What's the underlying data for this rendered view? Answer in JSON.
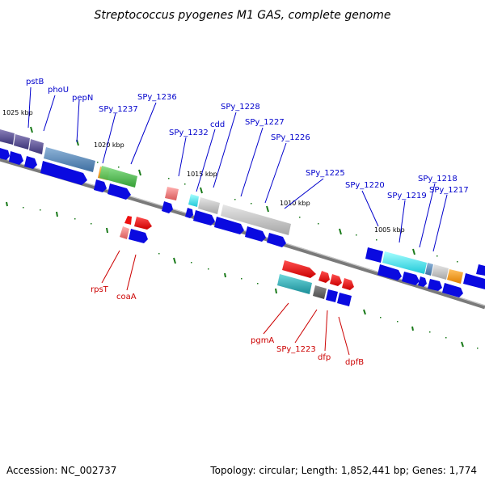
{
  "title": "Streptococcus pyogenes M1 GAS, complete genome",
  "footer": {
    "accession": "Accession: NC_002737",
    "topology": "Topology: circular; Length: 1,852,441 bp; Genes: 1,774"
  },
  "scale_labels": [
    "1025 kbp",
    "1020 kbp",
    "1015 kbp",
    "1010 kbp",
    "1005 kbp"
  ],
  "gene_labels_top": [
    "pstB",
    "phoU",
    "pepN",
    "SPy_1237",
    "SPy_1236",
    "SPy_1232",
    "cdd",
    "SPy_1228",
    "SPy_1227",
    "SPy_1226",
    "SPy_1225",
    "SPy_1220",
    "SPy_1219",
    "SPy_1218",
    "SPy_1217"
  ],
  "gene_labels_bottom": [
    "rpsT",
    "coaA",
    "pgmA",
    "SPy_1223",
    "dfp",
    "dpfB"
  ],
  "colors": {
    "backbone": "#7a7a7a",
    "cds_blue": "#0a0ae0",
    "label_top": "#0000cc",
    "label_bottom": "#cc0000",
    "tick": "#1a7a1a"
  }
}
